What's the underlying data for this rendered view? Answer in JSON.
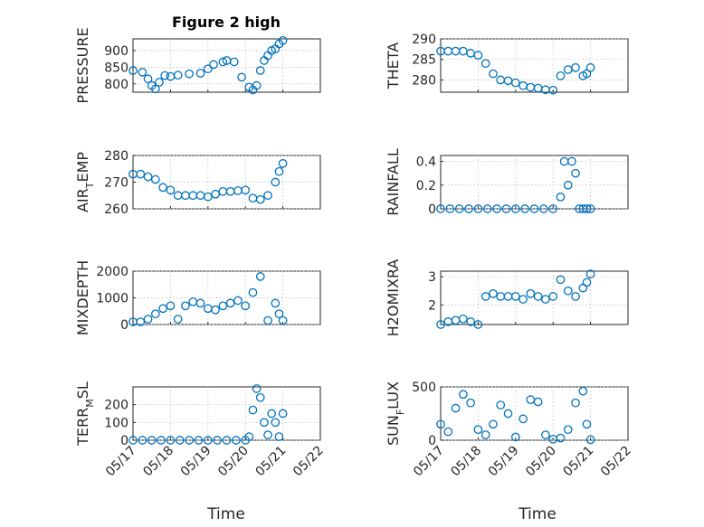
{
  "figure": {
    "title": "Figure 2 high",
    "xlabel": "Time",
    "date_ticks": [
      "05/17",
      "05/18",
      "05/19",
      "05/20",
      "05/21",
      "05/22"
    ]
  },
  "colors": {
    "marker": "#0072bd",
    "axes": "#262626",
    "grid": "#b7b7b7"
  },
  "chart_data": [
    {
      "type": "scatter",
      "ylabel": "PRESSURE",
      "ylabel_sub": null,
      "ylim": [
        775,
        935
      ],
      "yticks": [
        800,
        850,
        900
      ],
      "x": [
        "05/17 00:00",
        "05/17 06:00",
        "05/17 09:36",
        "05/17 12:00",
        "05/17 14:24",
        "05/17 16:48",
        "05/17 20:24",
        "05/18 00:00",
        "05/18 04:48",
        "05/18 12:00",
        "05/18 19:12",
        "05/19 00:00",
        "05/19 03:36",
        "05/19 09:36",
        "05/19 12:00",
        "05/19 16:48",
        "05/19 21:36",
        "05/20 02:24",
        "05/20 04:48",
        "05/20 07:12",
        "05/20 09:36",
        "05/20 12:00",
        "05/20 14:24",
        "05/20 16:48",
        "05/20 19:12",
        "05/20 21:36",
        "05/21 00:00"
      ],
      "y": [
        840,
        835,
        815,
        795,
        785,
        805,
        825,
        822,
        826,
        830,
        832,
        845,
        858,
        866,
        870,
        866,
        820,
        790,
        782,
        795,
        840,
        870,
        885,
        900,
        905,
        920,
        930
      ]
    },
    {
      "type": "scatter",
      "ylabel": "THETA",
      "ylabel_sub": null,
      "ylim": [
        277,
        290
      ],
      "yticks": [
        280,
        285,
        290
      ],
      "x": [
        "05/17 00:00",
        "05/17 04:48",
        "05/17 09:36",
        "05/17 14:24",
        "05/17 19:12",
        "05/18 00:00",
        "05/18 04:48",
        "05/18 09:36",
        "05/18 14:24",
        "05/18 19:12",
        "05/19 00:00",
        "05/19 04:48",
        "05/19 09:36",
        "05/19 14:24",
        "05/19 19:12",
        "05/20 00:00",
        "05/20 04:48",
        "05/20 09:36",
        "05/20 14:24",
        "05/20 19:12",
        "05/20 21:36",
        "05/21 00:00"
      ],
      "y": [
        287,
        287,
        287,
        287,
        286.5,
        286,
        284,
        281.5,
        280,
        279.8,
        279.3,
        278.6,
        278.2,
        278,
        277.6,
        277.5,
        281,
        282.5,
        283,
        281,
        281.5,
        283
      ]
    },
    {
      "type": "scatter",
      "ylabel": "AIR",
      "ylabel_sub": "T",
      "ylabel_rest": "EMP",
      "ylim": [
        260,
        280
      ],
      "yticks": [
        260,
        270,
        280
      ],
      "x": [
        "05/17 00:00",
        "05/17 04:48",
        "05/17 09:36",
        "05/17 14:24",
        "05/17 19:12",
        "05/18 00:00",
        "05/18 04:48",
        "05/18 09:36",
        "05/18 14:24",
        "05/18 19:12",
        "05/19 00:00",
        "05/19 04:48",
        "05/19 09:36",
        "05/19 14:24",
        "05/19 19:12",
        "05/20 00:00",
        "05/20 04:48",
        "05/20 09:36",
        "05/20 14:24",
        "05/20 19:12",
        "05/20 21:36",
        "05/21 00:00"
      ],
      "y": [
        273,
        273,
        272,
        271,
        268,
        267,
        265,
        265,
        265,
        265,
        264.5,
        265.5,
        266.5,
        266.5,
        266.8,
        267,
        264,
        263.5,
        265,
        270,
        274,
        277
      ]
    },
    {
      "type": "scatter",
      "ylabel": "RAINFALL",
      "ylabel_sub": null,
      "ylim": [
        0,
        0.45
      ],
      "yticks": [
        0,
        0.2,
        0.4
      ],
      "x": [
        "05/17 00:00",
        "05/17 06:00",
        "05/17 12:00",
        "05/17 18:00",
        "05/18 00:00",
        "05/18 06:00",
        "05/18 12:00",
        "05/18 18:00",
        "05/19 00:00",
        "05/19 06:00",
        "05/19 12:00",
        "05/19 18:00",
        "05/20 00:00",
        "05/20 04:48",
        "05/20 07:12",
        "05/20 09:36",
        "05/20 12:00",
        "05/20 14:24",
        "05/20 16:48",
        "05/20 19:12",
        "05/20 21:36",
        "05/21 00:00"
      ],
      "y": [
        0,
        0,
        0,
        0,
        0,
        0,
        0,
        0,
        0,
        0,
        0,
        0,
        0,
        0.1,
        0.4,
        0.2,
        0.4,
        0.3,
        0,
        0,
        0,
        0
      ]
    },
    {
      "type": "scatter",
      "ylabel": "MIXDEPTH",
      "ylabel_sub": null,
      "ylim": [
        0,
        2000
      ],
      "yticks": [
        0,
        1000,
        2000
      ],
      "x": [
        "05/17 00:00",
        "05/17 04:48",
        "05/17 09:36",
        "05/17 14:24",
        "05/17 19:12",
        "05/18 00:00",
        "05/18 04:48",
        "05/18 09:36",
        "05/18 14:24",
        "05/18 19:12",
        "05/19 00:00",
        "05/19 04:48",
        "05/19 09:36",
        "05/19 14:24",
        "05/19 19:12",
        "05/20 00:00",
        "05/20 04:48",
        "05/20 09:36",
        "05/20 14:24",
        "05/20 19:12",
        "05/20 21:36",
        "05/21 00:00"
      ],
      "y": [
        100,
        100,
        200,
        400,
        600,
        700,
        200,
        700,
        850,
        800,
        600,
        550,
        700,
        800,
        900,
        700,
        1200,
        1800,
        150,
        800,
        400,
        150
      ]
    },
    {
      "type": "scatter",
      "ylabel": "H2OMIXRA",
      "ylabel_sub": null,
      "ylim": [
        1.3,
        3.2
      ],
      "yticks": [
        2,
        3
      ],
      "x": [
        "05/17 00:00",
        "05/17 04:48",
        "05/17 09:36",
        "05/17 14:24",
        "05/17 19:12",
        "05/18 00:00",
        "05/18 04:48",
        "05/18 09:36",
        "05/18 14:24",
        "05/18 19:12",
        "05/19 00:00",
        "05/19 04:48",
        "05/19 09:36",
        "05/19 14:24",
        "05/19 19:12",
        "05/20 00:00",
        "05/20 04:48",
        "05/20 09:36",
        "05/20 14:24",
        "05/20 19:12",
        "05/20 21:36",
        "05/21 00:00"
      ],
      "y": [
        1.3,
        1.4,
        1.45,
        1.5,
        1.4,
        1.3,
        2.3,
        2.4,
        2.3,
        2.3,
        2.3,
        2.2,
        2.4,
        2.3,
        2.2,
        2.3,
        2.9,
        2.5,
        2.3,
        2.6,
        2.8,
        3.1
      ]
    },
    {
      "type": "scatter",
      "ylabel": "TERR",
      "ylabel_sub": "M",
      "ylabel_rest": "SL",
      "ylim": [
        0,
        300
      ],
      "yticks": [
        0,
        100,
        200
      ],
      "x": [
        "05/17 00:00",
        "05/17 06:00",
        "05/17 12:00",
        "05/17 18:00",
        "05/18 00:00",
        "05/18 06:00",
        "05/18 12:00",
        "05/18 18:00",
        "05/19 00:00",
        "05/19 06:00",
        "05/19 12:00",
        "05/19 18:00",
        "05/20 00:00",
        "05/20 02:24",
        "05/20 04:48",
        "05/20 07:12",
        "05/20 09:36",
        "05/20 12:00",
        "05/20 14:24",
        "05/20 16:48",
        "05/20 19:12",
        "05/20 21:36",
        "05/21 00:00"
      ],
      "y": [
        0,
        0,
        0,
        0,
        0,
        0,
        0,
        0,
        0,
        0,
        0,
        0,
        0,
        20,
        170,
        290,
        240,
        100,
        30,
        150,
        100,
        20,
        150
      ]
    },
    {
      "type": "scatter",
      "ylabel": "SUN",
      "ylabel_sub": "F",
      "ylabel_rest": "LUX",
      "ylim": [
        0,
        500
      ],
      "yticks": [
        0,
        500
      ],
      "x": [
        "05/17 00:00",
        "05/17 04:48",
        "05/17 09:36",
        "05/17 14:24",
        "05/17 19:12",
        "05/18 00:00",
        "05/18 04:48",
        "05/18 09:36",
        "05/18 14:24",
        "05/18 19:12",
        "05/19 00:00",
        "05/19 04:48",
        "05/19 09:36",
        "05/19 14:24",
        "05/19 19:12",
        "05/20 00:00",
        "05/20 04:48",
        "05/20 09:36",
        "05/20 14:24",
        "05/20 19:12",
        "05/20 21:36",
        "05/21 00:00"
      ],
      "y": [
        150,
        80,
        300,
        430,
        350,
        100,
        50,
        150,
        330,
        250,
        30,
        200,
        380,
        360,
        50,
        10,
        20,
        100,
        350,
        460,
        150,
        5
      ]
    }
  ]
}
